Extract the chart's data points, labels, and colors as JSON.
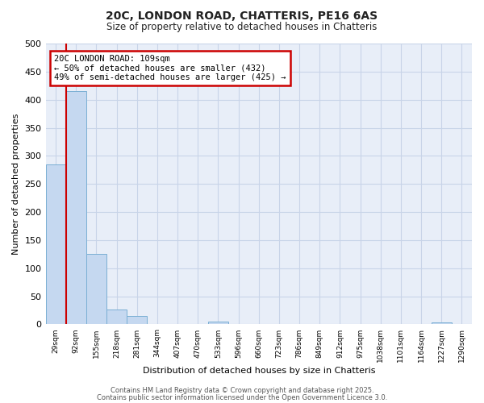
{
  "title1": "20C, LONDON ROAD, CHATTERIS, PE16 6AS",
  "title2": "Size of property relative to detached houses in Chatteris",
  "xlabel": "Distribution of detached houses by size in Chatteris",
  "ylabel": "Number of detached properties",
  "bar_labels": [
    "29sqm",
    "92sqm",
    "155sqm",
    "218sqm",
    "281sqm",
    "344sqm",
    "407sqm",
    "470sqm",
    "533sqm",
    "596sqm",
    "660sqm",
    "723sqm",
    "786sqm",
    "849sqm",
    "912sqm",
    "975sqm",
    "1038sqm",
    "1101sqm",
    "1164sqm",
    "1227sqm",
    "1290sqm"
  ],
  "bar_values": [
    285,
    415,
    125,
    27,
    15,
    0,
    0,
    0,
    5,
    0,
    0,
    0,
    0,
    0,
    0,
    0,
    0,
    0,
    0,
    4,
    0
  ],
  "bar_color": "#c5d8f0",
  "bar_edge_color": "#7aafd4",
  "red_line_x": 0.5,
  "annotation_title": "20C LONDON ROAD: 109sqm",
  "annotation_line1": "← 50% of detached houses are smaller (432)",
  "annotation_line2": "49% of semi-detached houses are larger (425) →",
  "annotation_box_color": "#ffffff",
  "annotation_border_color": "#cc0000",
  "red_line_color": "#cc0000",
  "grid_color": "#c8d4e8",
  "background_color": "#ffffff",
  "plot_bg_color": "#e8eef8",
  "footer1": "Contains HM Land Registry data © Crown copyright and database right 2025.",
  "footer2": "Contains public sector information licensed under the Open Government Licence 3.0.",
  "ylim": [
    0,
    500
  ],
  "yticks": [
    0,
    50,
    100,
    150,
    200,
    250,
    300,
    350,
    400,
    450,
    500
  ]
}
